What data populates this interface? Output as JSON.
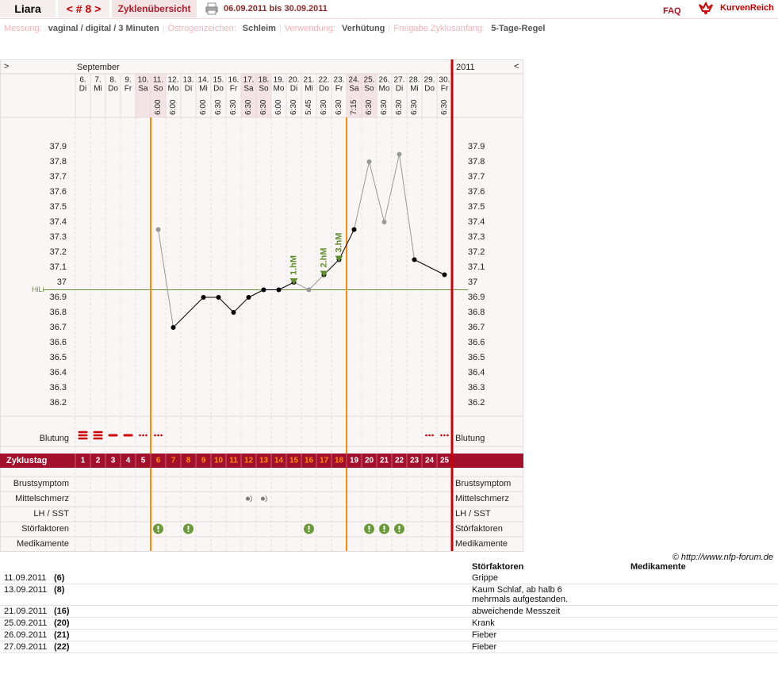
{
  "header": {
    "name": "Liara",
    "cycle_nav": "< # 8 >",
    "overview": "Zyklenübersicht",
    "range": "06.09.2011 bis 30.09.2011",
    "faq": "FAQ",
    "logo": "KurvenReich"
  },
  "settings": {
    "separator": "|",
    "items": [
      {
        "label": "Messung:",
        "value": "vaginal / digital / 3 Minuten"
      },
      {
        "label": "Östrogenzeichen:",
        "value": "Schleim"
      },
      {
        "label": "Verwendung:",
        "value": "Verhütung"
      },
      {
        "label": "Freigabe Zyklusanfang:",
        "value": "5-Tage-Regel"
      }
    ]
  },
  "chart_data": {
    "type": "line",
    "nav_left": ">",
    "nav_right": "<",
    "month": "September",
    "year": "2011",
    "categories": [
      "6.",
      "7.",
      "8.",
      "9.",
      "10.",
      "11.",
      "12.",
      "13.",
      "14.",
      "15.",
      "16.",
      "17.",
      "18.",
      "19.",
      "20.",
      "21.",
      "22.",
      "23.",
      "24.",
      "25.",
      "26.",
      "27.",
      "28.",
      "29.",
      "30."
    ],
    "weekdays": [
      "Di",
      "Mi",
      "Do",
      "Fr",
      "Sa",
      "So",
      "Mo",
      "Di",
      "Mi",
      "Do",
      "Fr",
      "Sa",
      "So",
      "Mo",
      "Di",
      "Mi",
      "Do",
      "Fr",
      "Sa",
      "So",
      "Mo",
      "Di",
      "Mi",
      "Do",
      "Fr"
    ],
    "weekend": [
      false,
      false,
      false,
      false,
      true,
      true,
      false,
      false,
      false,
      false,
      false,
      true,
      true,
      false,
      false,
      false,
      false,
      false,
      true,
      true,
      false,
      false,
      false,
      false,
      false
    ],
    "weekend_color": "#f3e3e5",
    "times": [
      null,
      null,
      null,
      null,
      null,
      "6:00",
      "6:00",
      null,
      "6:00",
      "6:30",
      "6:30",
      "6:30",
      "6:30",
      "6:00",
      "6:30",
      "5:45",
      "6:30",
      "6:30",
      "7:15",
      "6:30",
      "6:30",
      "6:30",
      "6:30",
      null,
      "6:30"
    ],
    "cycle_day_label": "Zyklustag",
    "cycle_days": [
      1,
      2,
      3,
      4,
      5,
      6,
      7,
      8,
      9,
      10,
      11,
      12,
      13,
      14,
      15,
      16,
      17,
      18,
      19,
      20,
      21,
      22,
      23,
      24,
      25
    ],
    "values": [
      null,
      null,
      null,
      null,
      null,
      37.35,
      36.7,
      null,
      36.9,
      36.9,
      36.8,
      36.9,
      36.95,
      36.95,
      37.0,
      36.95,
      37.05,
      37.15,
      37.35,
      37.8,
      37.4,
      37.85,
      37.15,
      null,
      37.05
    ],
    "excluded": [
      false,
      false,
      false,
      false,
      false,
      true,
      false,
      false,
      false,
      false,
      false,
      false,
      false,
      false,
      false,
      true,
      false,
      false,
      false,
      true,
      true,
      true,
      false,
      false,
      false
    ],
    "color": "#000000",
    "excluded_color": "#999999",
    "ylim": [
      36.1,
      38.0
    ],
    "yticks": [
      36.2,
      36.3,
      36.4,
      36.5,
      36.6,
      36.7,
      36.8,
      36.9,
      37,
      37.1,
      37.2,
      37.3,
      37.4,
      37.5,
      37.6,
      37.7,
      37.8,
      37.9
    ],
    "hili": {
      "value": 36.95,
      "label": "HiLi",
      "color": "#6b8e3a"
    },
    "high_labels": [
      null,
      null,
      null,
      null,
      null,
      null,
      null,
      null,
      null,
      null,
      null,
      null,
      null,
      null,
      "1.hM",
      null,
      "2.hM",
      "3.hM",
      null,
      null,
      null,
      null,
      null,
      null,
      null
    ],
    "fertile_window": [
      6,
      18
    ],
    "fertile_color": "#ff8c00",
    "bleeding_label": "Blutung",
    "bleeding_color": "#cc0000",
    "bleeding": [
      3,
      3,
      2,
      2,
      1,
      1,
      null,
      null,
      null,
      null,
      null,
      null,
      null,
      null,
      null,
      null,
      null,
      null,
      null,
      null,
      null,
      null,
      null,
      1,
      1
    ],
    "symptom_rows": [
      {
        "label": "Brustsymptom",
        "icon": "pain",
        "marks": [
          false,
          false,
          false,
          false,
          false,
          false,
          false,
          false,
          false,
          false,
          false,
          false,
          false,
          false,
          false,
          false,
          false,
          false,
          false,
          false,
          false,
          false,
          false,
          false,
          false
        ]
      },
      {
        "label": "Mittelschmerz",
        "icon": "pain",
        "marks": [
          false,
          false,
          false,
          false,
          false,
          false,
          false,
          false,
          false,
          false,
          false,
          true,
          true,
          false,
          false,
          false,
          false,
          false,
          false,
          false,
          false,
          false,
          false,
          false,
          false
        ]
      },
      {
        "label": "LH / SST",
        "icon": "alert",
        "marks": [
          false,
          false,
          false,
          false,
          false,
          false,
          false,
          false,
          false,
          false,
          false,
          false,
          false,
          false,
          false,
          false,
          false,
          false,
          false,
          false,
          false,
          false,
          false,
          false,
          false
        ]
      },
      {
        "label": "Störfaktoren",
        "icon": "alert",
        "marks": [
          false,
          false,
          false,
          false,
          false,
          true,
          false,
          true,
          false,
          false,
          false,
          false,
          false,
          false,
          false,
          true,
          false,
          false,
          false,
          true,
          true,
          true,
          false,
          false,
          false
        ]
      },
      {
        "label": "Medikamente",
        "icon": "alert",
        "marks": [
          false,
          false,
          false,
          false,
          false,
          false,
          false,
          false,
          false,
          false,
          false,
          false,
          false,
          false,
          false,
          false,
          false,
          false,
          false,
          false,
          false,
          false,
          false,
          false,
          false
        ]
      }
    ]
  },
  "copyright": "© http://www.nfp-forum.de",
  "notes": {
    "headers": [
      "Störfaktoren",
      "Medikamente"
    ],
    "rows": [
      {
        "date": "11.09.2011",
        "cycle_day": "(6)",
        "text": "Grippe"
      },
      {
        "date": "13.09.2011",
        "cycle_day": "(8)",
        "text": "Kaum Schlaf, ab halb 6 mehrmals aufgestanden."
      },
      {
        "date": "21.09.2011",
        "cycle_day": "(16)",
        "text": "abweichende Messzeit"
      },
      {
        "date": "25.09.2011",
        "cycle_day": "(20)",
        "text": "Krank"
      },
      {
        "date": "26.09.2011",
        "cycle_day": "(21)",
        "text": "Fieber"
      },
      {
        "date": "27.09.2011",
        "cycle_day": "(22)",
        "text": "Fieber"
      }
    ]
  }
}
